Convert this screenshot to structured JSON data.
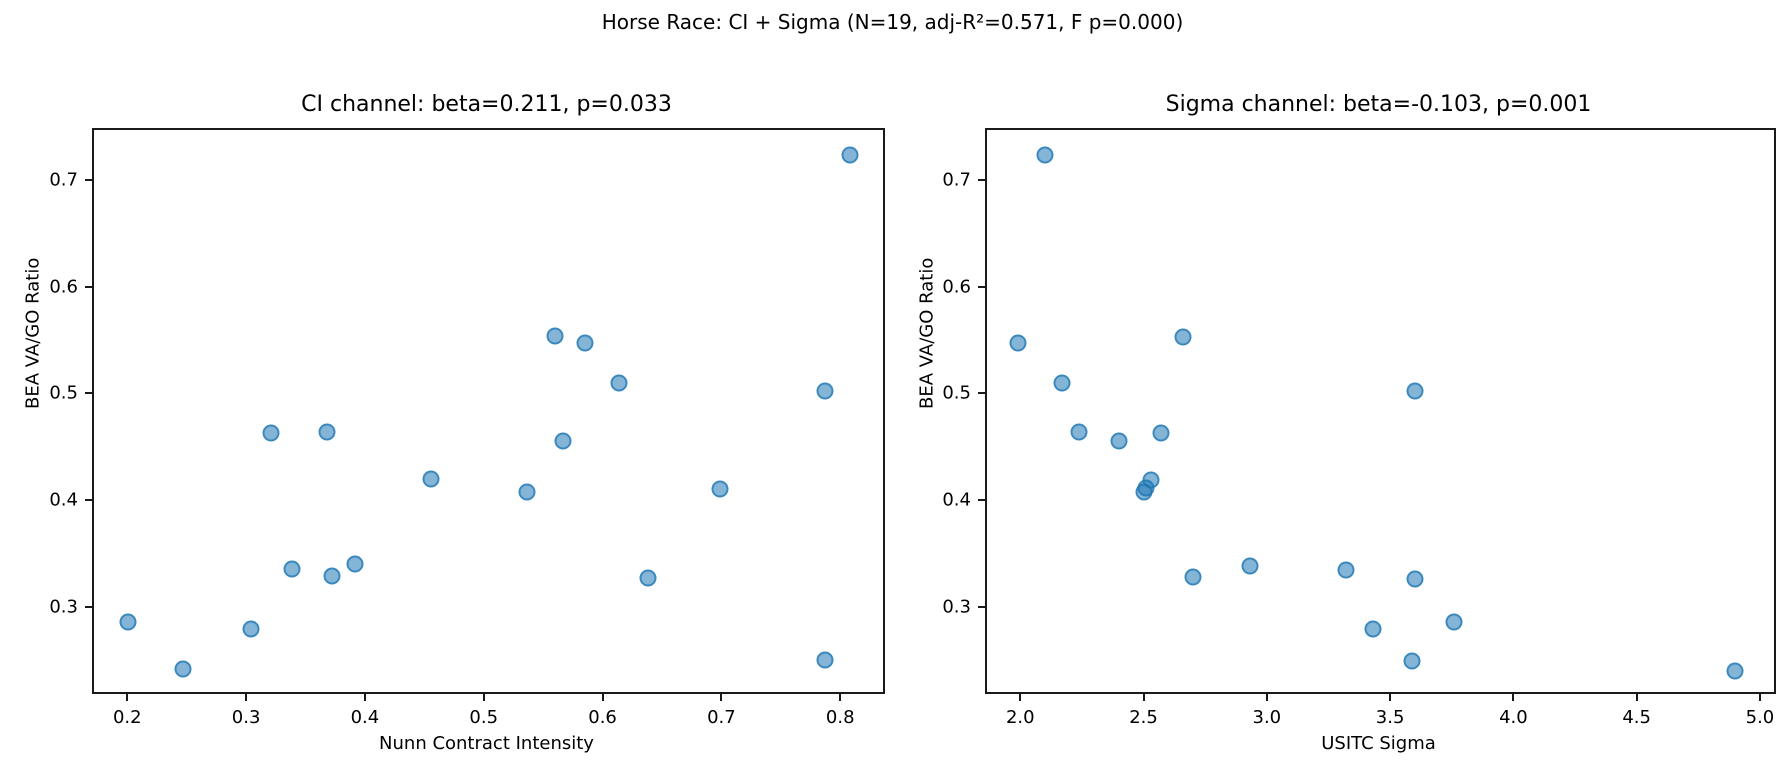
{
  "figure": {
    "suptitle": "Horse Race: CI + Sigma (N=19, adj-R²=0.571, F p=0.000)",
    "background_color": "#ffffff",
    "marker_color": "#1f77b4",
    "marker_alpha": 0.6,
    "n_points": 19
  },
  "chart_data": [
    {
      "type": "scatter",
      "title": "CI channel: beta=0.211, p=0.033",
      "xlabel": "Nunn Contract Intensity",
      "ylabel": "BEA VA/GO Ratio",
      "xlim": [
        0.172,
        0.836
      ],
      "ylim": [
        0.22,
        0.747
      ],
      "xticks": [
        0.2,
        0.3,
        0.4,
        0.5,
        0.6,
        0.7,
        0.8
      ],
      "yticks": [
        0.3,
        0.4,
        0.5,
        0.6,
        0.7
      ],
      "grid": false,
      "legend": null,
      "points": [
        [
          0.808,
          0.724
        ],
        [
          0.56,
          0.554
        ],
        [
          0.585,
          0.547
        ],
        [
          0.614,
          0.51
        ],
        [
          0.787,
          0.502
        ],
        [
          0.321,
          0.463
        ],
        [
          0.368,
          0.464
        ],
        [
          0.567,
          0.455
        ],
        [
          0.456,
          0.42
        ],
        [
          0.536,
          0.408
        ],
        [
          0.699,
          0.41
        ],
        [
          0.339,
          0.335
        ],
        [
          0.372,
          0.329
        ],
        [
          0.392,
          0.34
        ],
        [
          0.638,
          0.327
        ],
        [
          0.201,
          0.286
        ],
        [
          0.304,
          0.279
        ],
        [
          0.247,
          0.242
        ],
        [
          0.787,
          0.25
        ]
      ]
    },
    {
      "type": "scatter",
      "title": "Sigma channel: beta=-0.103, p=0.001",
      "xlabel": "USITC Sigma",
      "ylabel": "BEA VA/GO Ratio",
      "xlim": [
        1.865,
        5.057
      ],
      "ylim": [
        0.22,
        0.747
      ],
      "xticks": [
        2.0,
        2.5,
        3.0,
        3.5,
        4.0,
        4.5,
        5.0
      ],
      "yticks": [
        0.3,
        0.4,
        0.5,
        0.6,
        0.7
      ],
      "grid": false,
      "legend": null,
      "points": [
        [
          2.1,
          0.724
        ],
        [
          2.66,
          0.553
        ],
        [
          1.99,
          0.547
        ],
        [
          2.17,
          0.51
        ],
        [
          3.6,
          0.502
        ],
        [
          2.24,
          0.464
        ],
        [
          2.57,
          0.463
        ],
        [
          2.4,
          0.455
        ],
        [
          2.53,
          0.419
        ],
        [
          2.5,
          0.408
        ],
        [
          2.51,
          0.411
        ],
        [
          2.93,
          0.338
        ],
        [
          3.32,
          0.334
        ],
        [
          2.7,
          0.328
        ],
        [
          3.6,
          0.326
        ],
        [
          3.76,
          0.286
        ],
        [
          3.43,
          0.279
        ],
        [
          3.59,
          0.249
        ],
        [
          4.9,
          0.24
        ]
      ]
    }
  ]
}
